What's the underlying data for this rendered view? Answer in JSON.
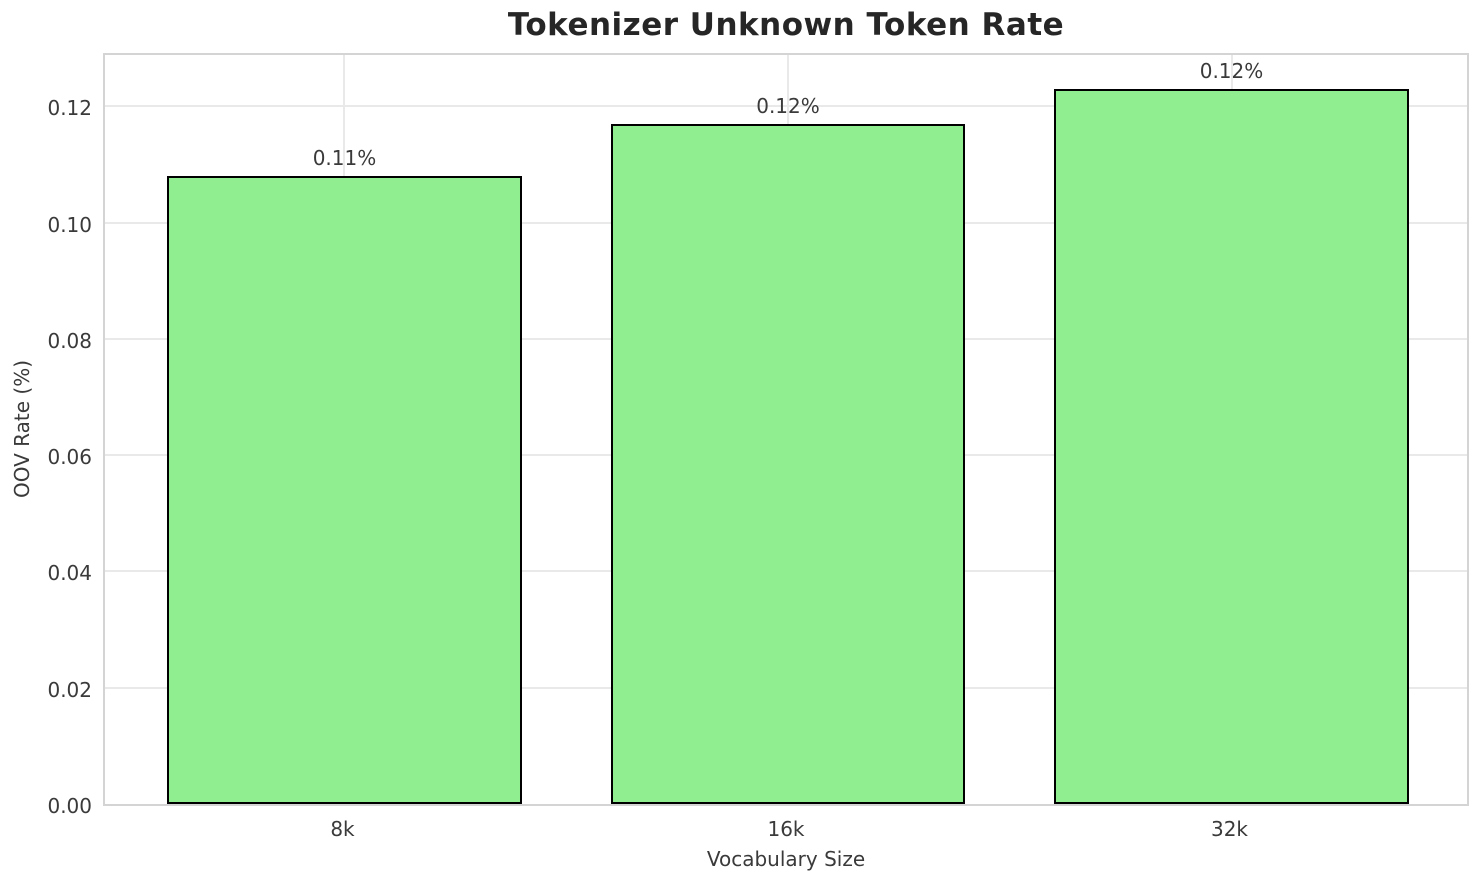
{
  "chart_data": {
    "type": "bar",
    "title": "Tokenizer Unknown Token Rate",
    "xlabel": "Vocabulary Size",
    "ylabel": "OOV Rate (%)",
    "categories": [
      "8k",
      "16k",
      "32k"
    ],
    "values": [
      0.108,
      0.117,
      0.123
    ],
    "bar_labels": [
      "0.11%",
      "0.12%",
      "0.12%"
    ],
    "yticks": [
      "0.00",
      "0.02",
      "0.04",
      "0.06",
      "0.08",
      "0.10",
      "0.12"
    ],
    "ytick_values": [
      0.0,
      0.02,
      0.04,
      0.06,
      0.08,
      0.1,
      0.12
    ],
    "ylim": [
      0,
      0.1295
    ],
    "grid": true,
    "legend": "none",
    "bar_color": "#90EE90",
    "bar_edge_color": "#000000",
    "colors": {
      "background": "#ffffff",
      "grid": "#e9e9e9",
      "spine": "#d4d4d4",
      "title_text": "#262626",
      "tick_text": "#3a3a3a"
    }
  }
}
